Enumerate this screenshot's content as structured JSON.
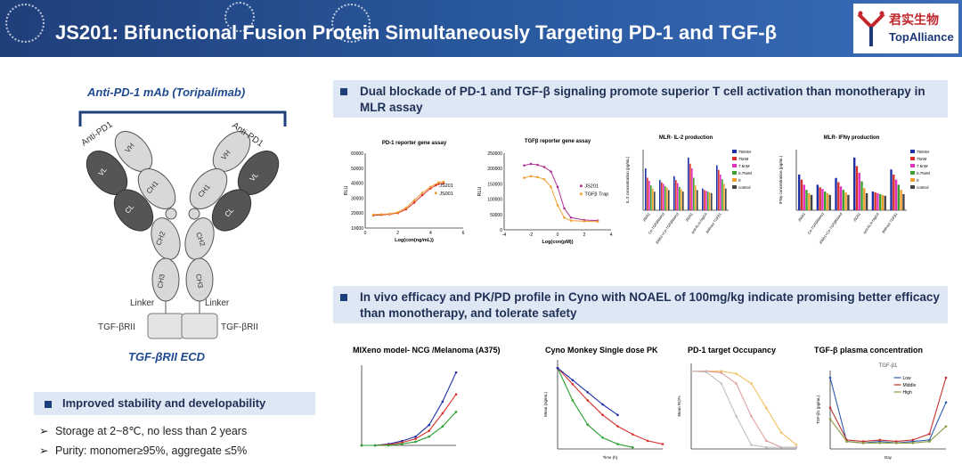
{
  "header": {
    "title": "JS201: Bifunctional Fusion Protein Simultaneously Targeting PD-1 and TGF-β",
    "logo_cn": "君实生物",
    "logo_en": "TopAlliance"
  },
  "left": {
    "antibody_title": "Anti-PD-1 mAb (Toripalimab)",
    "ecd_title": "TGF-βRII ECD",
    "labels": {
      "anti_pd1_left": "Anti-PD1",
      "anti_pd1_right": "Anti-PD1",
      "vh": "VH",
      "vl": "VL",
      "ch1": "CH1",
      "cl": "CL",
      "ch2": "CH2",
      "ch3": "CH3",
      "linker_left": "Linker",
      "linker_right": "Linker",
      "tgf_left": "TGF-βRII",
      "tgf_right": "TGF-βRII"
    },
    "stability_title": "Improved stability and developability",
    "bullets": [
      "Storage at 2~8℃, no less than 2 years",
      "Purity: monomer≥95%, aggregate ≤5%"
    ],
    "bullet_marker": "➢"
  },
  "section1": {
    "title": "Dual blockade of PD-1 and TGF-β signaling promote superior T cell activation than monotherapy in MLR assay"
  },
  "section2": {
    "title": "In vivo efficacy and PK/PD profile in Cyno with NOAEL of 100mg/kg indicate promising better efficacy than monotherapy, and tolerate safety"
  },
  "chart_data": [
    {
      "type": "line",
      "title": "PD-1 reporter gene assay",
      "xlabel": "Log(con(ng/mL))",
      "ylabel": "RLU",
      "yticks": [
        "60000",
        "50000",
        "40000",
        "30000",
        "20000",
        "10000"
      ],
      "xticks": [
        "0",
        "2",
        "4",
        "6"
      ],
      "ylim": [
        10000,
        60000
      ],
      "xlim": [
        0,
        6
      ],
      "series": [
        {
          "name": "JS201",
          "color": "#d9302a",
          "x": [
            0.5,
            1,
            1.5,
            2,
            2.5,
            3,
            3.5,
            4,
            4.5,
            4.8
          ],
          "y": [
            18500,
            18800,
            19200,
            20000,
            22500,
            27000,
            32000,
            36500,
            39500,
            40000
          ]
        },
        {
          "name": "JS001",
          "color": "#f0a030",
          "x": [
            0.5,
            1,
            1.5,
            2,
            2.5,
            3,
            3.5,
            4,
            4.5,
            4.8
          ],
          "y": [
            19000,
            19200,
            19500,
            20500,
            23500,
            28500,
            33500,
            37500,
            40500,
            41000
          ]
        }
      ]
    },
    {
      "type": "line",
      "title": "TGFβ reporter gene assay",
      "xlabel": "Log(con(pM))",
      "ylabel": "RLU",
      "yticks": [
        "250000",
        "200000",
        "150000",
        "100000",
        "50000",
        "0"
      ],
      "xticks": [
        "-4",
        "-2",
        "0",
        "2",
        "4"
      ],
      "ylim": [
        0,
        250000
      ],
      "xlim": [
        -4,
        4
      ],
      "series": [
        {
          "name": "JS201",
          "color": "#b03090",
          "x": [
            -2.5,
            -2,
            -1.5,
            -1,
            -0.5,
            0,
            0.5,
            1,
            2,
            3
          ],
          "y": [
            210000,
            215000,
            212000,
            205000,
            190000,
            140000,
            70000,
            40000,
            32000,
            30000
          ]
        },
        {
          "name": "TGFβ Trap",
          "color": "#f0a030",
          "x": [
            -2.5,
            -2,
            -1.5,
            -1,
            -0.5,
            0,
            0.5,
            1,
            2,
            3
          ],
          "y": [
            170000,
            175000,
            172000,
            165000,
            140000,
            80000,
            40000,
            30000,
            28000,
            27000
          ]
        }
      ]
    },
    {
      "type": "bar",
      "title": "MLR- IL-2 production",
      "ylabel": "IL-2 concentration (pg/mL)",
      "categories": [
        "JS001",
        "Cα-TGFβRIIecd",
        "JS001+Cα-TGFβRIIecd",
        "JS201",
        "anti-KLH-hIgG4",
        "Without TGFβ1"
      ],
      "legend": [
        "750nM",
        "75nM",
        "7.5nM",
        "0.75nM",
        "0",
        "control"
      ],
      "colors": [
        "#1f2fa8",
        "#d9302a",
        "#e030c0",
        "#3aa030",
        "#f0a030",
        "#444444"
      ],
      "values": [
        [
          5400,
          4200,
          3800,
          3200,
          2800,
          2400
        ],
        [
          3900,
          3600,
          3400,
          3100,
          2900,
          2600
        ],
        [
          4400,
          3900,
          3500,
          3000,
          2700,
          2400
        ],
        [
          6800,
          6000,
          5400,
          4200,
          3200,
          2600
        ],
        [
          2800,
          2600,
          2500,
          2400,
          2300,
          2200
        ],
        [
          5800,
          5200,
          4600,
          4000,
          3400,
          2800
        ]
      ]
    },
    {
      "type": "bar",
      "title": "MLR- IFNγ production",
      "ylabel": "IFNγ concentration (pg/mL)",
      "categories": [
        "JS001",
        "Cα-TGFβRIIecd",
        "JS001+Cα-TGFβRIIecd",
        "JS201",
        "anti-KLH-hIgG4",
        "Without TGFβ1"
      ],
      "legend": [
        "750nM",
        "75nM",
        "7.5nM",
        "0.75nM",
        "0",
        "control"
      ],
      "colors": [
        "#1f2fa8",
        "#d9302a",
        "#e030c0",
        "#3aa030",
        "#f0a030",
        "#444444"
      ],
      "values": [
        [
          42000,
          36000,
          30000,
          24000,
          20000,
          18000
        ],
        [
          30000,
          27000,
          25000,
          22000,
          20000,
          18000
        ],
        [
          38000,
          33000,
          28000,
          24000,
          21000,
          18000
        ],
        [
          62000,
          52000,
          44000,
          34000,
          26000,
          20000
        ],
        [
          22000,
          21000,
          20000,
          19000,
          18000,
          17000
        ],
        [
          48000,
          42000,
          36000,
          30000,
          24000,
          19000
        ]
      ]
    },
    {
      "type": "line",
      "title": "MIXeno model- NCG /Melanoma (A375)",
      "series": [
        {
          "color": "#1f2fa8",
          "y": [
            0,
            0,
            2,
            6,
            12,
            28,
            60,
            100
          ]
        },
        {
          "color": "#d9302a",
          "y": [
            0,
            0,
            1,
            4,
            9,
            20,
            44,
            70
          ]
        },
        {
          "color": "#2aa030",
          "y": [
            0,
            0,
            0,
            2,
            5,
            12,
            26,
            46
          ]
        }
      ]
    },
    {
      "type": "line",
      "title": "Cyno Monkey Single dose PK",
      "xlabel": "Time (h)",
      "ylabel": "Mean (ng/mL)",
      "series": [
        {
          "color": "#2aa030",
          "y": [
            100,
            60,
            30,
            14,
            6,
            2
          ]
        },
        {
          "color": "#d9302a",
          "y": [
            100,
            80,
            60,
            42,
            28,
            18,
            10,
            6
          ]
        },
        {
          "color": "#1f2fa8",
          "y": [
            100,
            85,
            70,
            55,
            42
          ]
        }
      ]
    },
    {
      "type": "line",
      "title": "PD-1 target Occupancy",
      "ylabel": "Mean RO%",
      "series": [
        {
          "color": "#f0c060",
          "y": [
            95,
            95,
            95,
            92,
            80,
            50,
            20,
            5
          ]
        },
        {
          "color": "#e0a0a0",
          "y": [
            95,
            95,
            93,
            80,
            40,
            10,
            2,
            2
          ]
        },
        {
          "color": "#c0c0c0",
          "y": [
            95,
            94,
            80,
            40,
            5,
            2,
            2,
            2
          ]
        }
      ]
    },
    {
      "type": "line",
      "title": "TGF-β plasma concentration",
      "subtitle": "TGF-β1",
      "ylabel": "TGF-β1 (pg/mL)",
      "xlabel": "Day",
      "legend": [
        "Low",
        "Middle",
        "High"
      ],
      "series": [
        {
          "name": "Low",
          "color": "#2a5ab0",
          "y": [
            95,
            10,
            8,
            10,
            8,
            10,
            12,
            62
          ]
        },
        {
          "name": "Middle",
          "color": "#c03030",
          "y": [
            55,
            12,
            10,
            12,
            10,
            12,
            20,
            95
          ]
        },
        {
          "name": "High",
          "color": "#8a9a40",
          "y": [
            40,
            10,
            8,
            8,
            8,
            8,
            10,
            30
          ]
        }
      ]
    }
  ]
}
